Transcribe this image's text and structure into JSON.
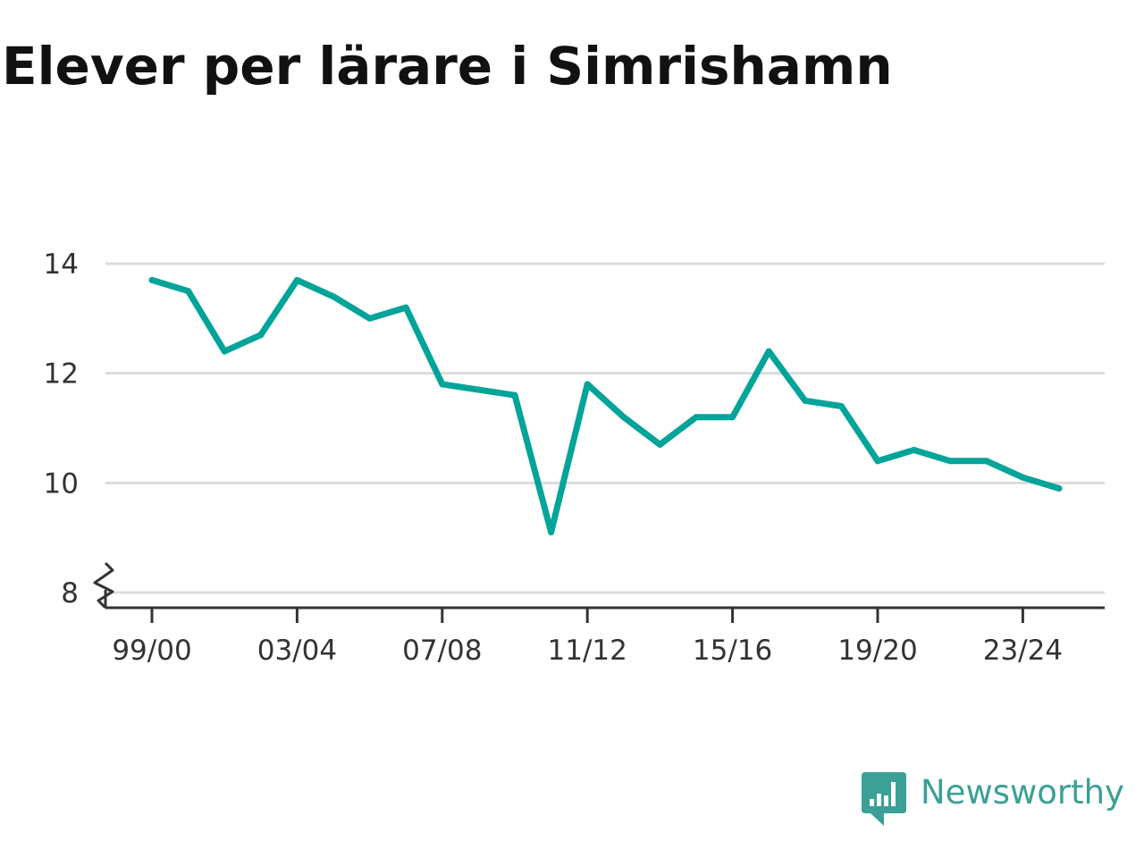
{
  "chart_data": {
    "type": "line",
    "title": "Elever per lärare i Simrishamn",
    "x": [
      "99/00",
      "00/01",
      "01/02",
      "02/03",
      "03/04",
      "04/05",
      "05/06",
      "06/07",
      "07/08",
      "08/09",
      "09/10",
      "10/11",
      "11/12",
      "12/13",
      "13/14",
      "14/15",
      "15/16",
      "16/17",
      "17/18",
      "18/19",
      "19/20",
      "20/21",
      "21/22",
      "22/23",
      "23/24",
      "24/25"
    ],
    "x_tick_labels": [
      "99/00",
      "03/04",
      "07/08",
      "11/12",
      "15/16",
      "19/20",
      "23/24"
    ],
    "series": [
      {
        "values": [
          13.7,
          13.5,
          12.4,
          12.7,
          13.7,
          13.4,
          13.0,
          13.2,
          11.8,
          11.7,
          11.6,
          9.1,
          11.8,
          11.2,
          10.7,
          11.2,
          11.2,
          12.4,
          11.5,
          11.4,
          10.4,
          10.6,
          10.4,
          10.4,
          10.1,
          9.9
        ]
      }
    ],
    "y_ticks": [
      8,
      10,
      12,
      14
    ],
    "ylim": [
      8,
      14
    ],
    "y_axis_broken": true,
    "grid": true,
    "line_color": "#00a499",
    "grid_color": "#dcdcdc",
    "axis_color": "#333333"
  },
  "brand": {
    "name": "Newsworthy",
    "color": "#3ba096",
    "icon": "bar-chart-speech-bubble-icon"
  }
}
